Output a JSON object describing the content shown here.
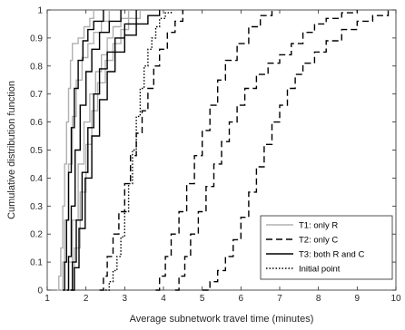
{
  "chart_data": {
    "type": "line",
    "title": "",
    "xlabel": "Average subnetwork travel time (minutes)",
    "ylabel": "Cumulative distribution function",
    "xlim": [
      1,
      10
    ],
    "ylim": [
      0,
      1
    ],
    "xticks": [
      1,
      2,
      3,
      4,
      5,
      6,
      7,
      8,
      9,
      10
    ],
    "yticks": [
      0,
      0.1,
      0.2,
      0.3,
      0.4,
      0.5,
      0.6,
      0.7,
      0.8,
      0.9,
      1
    ],
    "xtick_labels": [
      "1",
      "2",
      "3",
      "4",
      "5",
      "6",
      "7",
      "8",
      "9",
      "10"
    ],
    "ytick_labels": [
      "0",
      "0.1",
      "0.2",
      "0.3",
      "0.4",
      "0.5",
      "0.6",
      "0.7",
      "0.8",
      "0.9",
      "1"
    ],
    "grid": false,
    "legend_position": "bottom-right",
    "series": [
      {
        "name": "T1: only R",
        "style": "solid",
        "color": "#b0b0b0",
        "lines": [
          [
            [
              1.25,
              0
            ],
            [
              1.3,
              0.05
            ],
            [
              1.35,
              0.15
            ],
            [
              1.4,
              0.3
            ],
            [
              1.45,
              0.45
            ],
            [
              1.5,
              0.6
            ],
            [
              1.55,
              0.72
            ],
            [
              1.6,
              0.82
            ],
            [
              1.65,
              0.88
            ],
            [
              1.8,
              0.9
            ],
            [
              1.95,
              0.94
            ],
            [
              2.1,
              0.97
            ],
            [
              2.2,
              1.0
            ]
          ],
          [
            [
              1.35,
              0
            ],
            [
              1.4,
              0.1
            ],
            [
              1.45,
              0.25
            ],
            [
              1.55,
              0.45
            ],
            [
              1.65,
              0.62
            ],
            [
              1.75,
              0.75
            ],
            [
              1.9,
              0.83
            ],
            [
              2.05,
              0.88
            ],
            [
              2.2,
              0.92
            ],
            [
              2.4,
              0.96
            ],
            [
              2.6,
              1.0
            ]
          ],
          [
            [
              1.5,
              0
            ],
            [
              1.55,
              0.1
            ],
            [
              1.65,
              0.25
            ],
            [
              1.8,
              0.45
            ],
            [
              1.95,
              0.6
            ],
            [
              2.1,
              0.7
            ],
            [
              2.25,
              0.78
            ],
            [
              2.4,
              0.84
            ],
            [
              2.55,
              0.9
            ],
            [
              2.7,
              0.94
            ],
            [
              2.9,
              0.97
            ],
            [
              3.1,
              1.0
            ]
          ],
          [
            [
              1.6,
              0
            ],
            [
              1.7,
              0.15
            ],
            [
              1.85,
              0.35
            ],
            [
              2.0,
              0.52
            ],
            [
              2.15,
              0.64
            ],
            [
              2.3,
              0.74
            ],
            [
              2.5,
              0.82
            ],
            [
              2.7,
              0.88
            ],
            [
              2.9,
              0.93
            ],
            [
              3.1,
              0.97
            ],
            [
              3.4,
              1.0
            ]
          ]
        ]
      },
      {
        "name": "T2: only C",
        "style": "dashed",
        "color": "#000000",
        "lines": [
          [
            [
              2.35,
              0
            ],
            [
              2.45,
              0.05
            ],
            [
              2.55,
              0.12
            ],
            [
              2.7,
              0.2
            ],
            [
              2.85,
              0.28
            ],
            [
              3.0,
              0.38
            ],
            [
              3.15,
              0.48
            ],
            [
              3.3,
              0.56
            ],
            [
              3.45,
              0.64
            ],
            [
              3.6,
              0.72
            ],
            [
              3.75,
              0.8
            ],
            [
              3.9,
              0.86
            ],
            [
              4.1,
              0.92
            ],
            [
              4.3,
              0.96
            ],
            [
              4.5,
              1.0
            ]
          ],
          [
            [
              3.8,
              0
            ],
            [
              3.9,
              0.05
            ],
            [
              4.05,
              0.12
            ],
            [
              4.2,
              0.2
            ],
            [
              4.4,
              0.28
            ],
            [
              4.6,
              0.38
            ],
            [
              4.8,
              0.48
            ],
            [
              5.0,
              0.57
            ],
            [
              5.2,
              0.66
            ],
            [
              5.4,
              0.75
            ],
            [
              5.6,
              0.82
            ],
            [
              5.9,
              0.88
            ],
            [
              6.2,
              0.94
            ],
            [
              6.5,
              0.98
            ],
            [
              6.8,
              1.0
            ]
          ],
          [
            [
              4.3,
              0
            ],
            [
              4.4,
              0.05
            ],
            [
              4.55,
              0.12
            ],
            [
              4.7,
              0.2
            ],
            [
              4.9,
              0.28
            ],
            [
              5.1,
              0.37
            ],
            [
              5.3,
              0.45
            ],
            [
              5.5,
              0.53
            ],
            [
              5.7,
              0.6
            ],
            [
              5.9,
              0.66
            ],
            [
              6.1,
              0.72
            ],
            [
              6.4,
              0.77
            ],
            [
              6.7,
              0.81
            ],
            [
              7.0,
              0.84
            ],
            [
              7.3,
              0.88
            ],
            [
              7.6,
              0.92
            ],
            [
              7.9,
              0.95
            ],
            [
              8.2,
              0.97
            ],
            [
              8.6,
              0.99
            ],
            [
              9.0,
              1.0
            ]
          ],
          [
            [
              5.0,
              0
            ],
            [
              5.2,
              0.03
            ],
            [
              5.4,
              0.07
            ],
            [
              5.6,
              0.12
            ],
            [
              5.8,
              0.18
            ],
            [
              6.0,
              0.26
            ],
            [
              6.2,
              0.35
            ],
            [
              6.4,
              0.44
            ],
            [
              6.6,
              0.52
            ],
            [
              6.8,
              0.6
            ],
            [
              7.0,
              0.66
            ],
            [
              7.2,
              0.72
            ],
            [
              7.4,
              0.77
            ],
            [
              7.6,
              0.81
            ],
            [
              7.9,
              0.85
            ],
            [
              8.2,
              0.89
            ],
            [
              8.6,
              0.93
            ],
            [
              9.0,
              0.96
            ],
            [
              9.4,
              0.98
            ],
            [
              9.8,
              1.0
            ]
          ]
        ]
      },
      {
        "name": "T3: both R and C",
        "style": "solid",
        "color": "#000000",
        "lines": [
          [
            [
              1.4,
              0
            ],
            [
              1.45,
              0.1
            ],
            [
              1.5,
              0.25
            ],
            [
              1.55,
              0.42
            ],
            [
              1.62,
              0.58
            ],
            [
              1.7,
              0.72
            ],
            [
              1.8,
              0.82
            ],
            [
              1.92,
              0.89
            ],
            [
              2.05,
              0.93
            ],
            [
              2.2,
              0.96
            ],
            [
              2.45,
              1.0
            ]
          ],
          [
            [
              1.5,
              0
            ],
            [
              1.55,
              0.12
            ],
            [
              1.62,
              0.3
            ],
            [
              1.72,
              0.5
            ],
            [
              1.85,
              0.66
            ],
            [
              2.0,
              0.78
            ],
            [
              2.15,
              0.86
            ],
            [
              2.35,
              0.92
            ],
            [
              2.6,
              0.96
            ],
            [
              2.9,
              1.0
            ]
          ],
          [
            [
              1.6,
              0
            ],
            [
              1.65,
              0.1
            ],
            [
              1.75,
              0.25
            ],
            [
              1.9,
              0.42
            ],
            [
              2.05,
              0.58
            ],
            [
              2.2,
              0.7
            ],
            [
              2.35,
              0.79
            ],
            [
              2.55,
              0.85
            ],
            [
              2.75,
              0.9
            ],
            [
              3.0,
              0.95
            ],
            [
              3.3,
              1.0
            ]
          ],
          [
            [
              1.65,
              0
            ],
            [
              1.7,
              0.08
            ],
            [
              1.82,
              0.22
            ],
            [
              1.98,
              0.4
            ],
            [
              2.15,
              0.55
            ],
            [
              2.35,
              0.68
            ],
            [
              2.55,
              0.78
            ],
            [
              2.75,
              0.85
            ],
            [
              3.0,
              0.91
            ],
            [
              3.3,
              0.95
            ],
            [
              3.6,
              0.98
            ],
            [
              3.9,
              1.0
            ]
          ]
        ]
      },
      {
        "name": "Initial point",
        "style": "dotted",
        "color": "#000000",
        "lines": [
          [
            [
              2.5,
              0
            ],
            [
              2.6,
              0.03
            ],
            [
              2.7,
              0.07
            ],
            [
              2.8,
              0.12
            ],
            [
              2.9,
              0.19
            ],
            [
              3.0,
              0.28
            ],
            [
              3.1,
              0.38
            ],
            [
              3.2,
              0.5
            ],
            [
              3.3,
              0.62
            ],
            [
              3.4,
              0.72
            ],
            [
              3.5,
              0.8
            ],
            [
              3.6,
              0.86
            ],
            [
              3.7,
              0.9
            ],
            [
              3.8,
              0.94
            ],
            [
              3.9,
              0.97
            ],
            [
              4.05,
              0.99
            ],
            [
              4.2,
              1.0
            ]
          ]
        ]
      }
    ]
  }
}
